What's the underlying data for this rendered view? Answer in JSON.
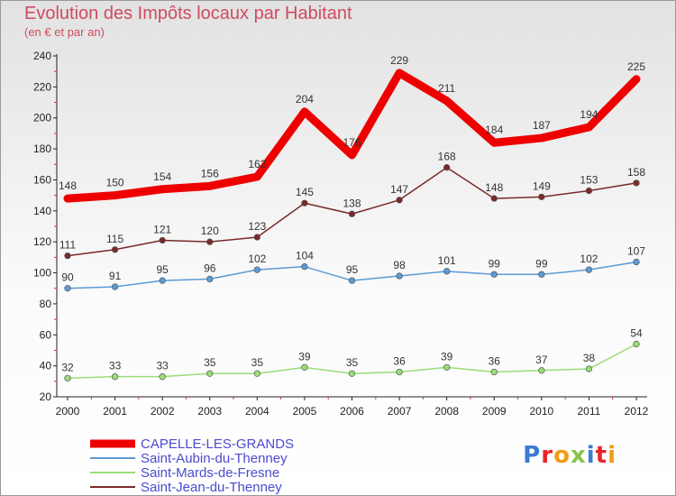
{
  "title": "Evolution des Impôts locaux par Habitant",
  "subtitle": "(en € et par an)",
  "logo": {
    "text": "Proxiti",
    "letter_colors": [
      "#3a7bd5",
      "#e8262a",
      "#f39c12",
      "#8bc34a",
      "#3a7bd5",
      "#e8262a",
      "#f39c12"
    ]
  },
  "chart_data": {
    "type": "line",
    "title": "Evolution des Impôts locaux par Habitant",
    "subtitle": "(en € et par an)",
    "xlabel": "",
    "ylabel": "",
    "x": [
      "2000",
      "2001",
      "2002",
      "2003",
      "2004",
      "2005",
      "2006",
      "2007",
      "2008",
      "2009",
      "2010",
      "2011",
      "2012"
    ],
    "ylim": [
      20,
      240
    ],
    "yticks": [
      "20",
      "40",
      "60",
      "80",
      "100",
      "120",
      "140",
      "160",
      "180",
      "200",
      "220",
      "240"
    ],
    "grid": false,
    "legend_position": "bottom-left",
    "series": [
      {
        "name": "CAPELLE-LES-GRANDS",
        "color": "#ee0000",
        "emphasis": "thick",
        "values": [
          148,
          150,
          154,
          156,
          162,
          204,
          176,
          229,
          211,
          184,
          187,
          194,
          225
        ],
        "labels": [
          "148",
          "150",
          "154",
          "156",
          "162",
          "204",
          "176",
          "229",
          "211",
          "184",
          "187",
          "194",
          "225"
        ]
      },
      {
        "name": "Saint-Aubin-du-Thenney",
        "color": "#5b9bd5",
        "emphasis": "normal",
        "values": [
          90,
          91,
          95,
          96,
          102,
          104,
          95,
          98,
          101,
          99,
          99,
          102,
          107
        ],
        "labels": [
          "90",
          "91",
          "95",
          "96",
          "102",
          "104",
          "95",
          "98",
          "101",
          "99",
          "99",
          "102",
          "107"
        ]
      },
      {
        "name": "Saint-Mards-de-Fresne",
        "color": "#99dd77",
        "emphasis": "normal",
        "values": [
          32,
          33,
          33,
          35,
          35,
          39,
          35,
          36,
          39,
          36,
          37,
          38,
          54
        ],
        "labels": [
          "32",
          "33",
          "33",
          "35",
          "35",
          "39",
          "35",
          "36",
          "39",
          "36",
          "37",
          "38",
          "54"
        ]
      },
      {
        "name": "Saint-Jean-du-Thenney",
        "color": "#7a2a2a",
        "emphasis": "normal",
        "values": [
          111,
          115,
          121,
          120,
          123,
          145,
          138,
          147,
          168,
          148,
          149,
          153,
          158
        ],
        "labels": [
          "111",
          "115",
          "121",
          "120",
          "123",
          "145",
          "138",
          "147",
          "168",
          "148",
          "149",
          "153",
          "158"
        ]
      }
    ]
  }
}
